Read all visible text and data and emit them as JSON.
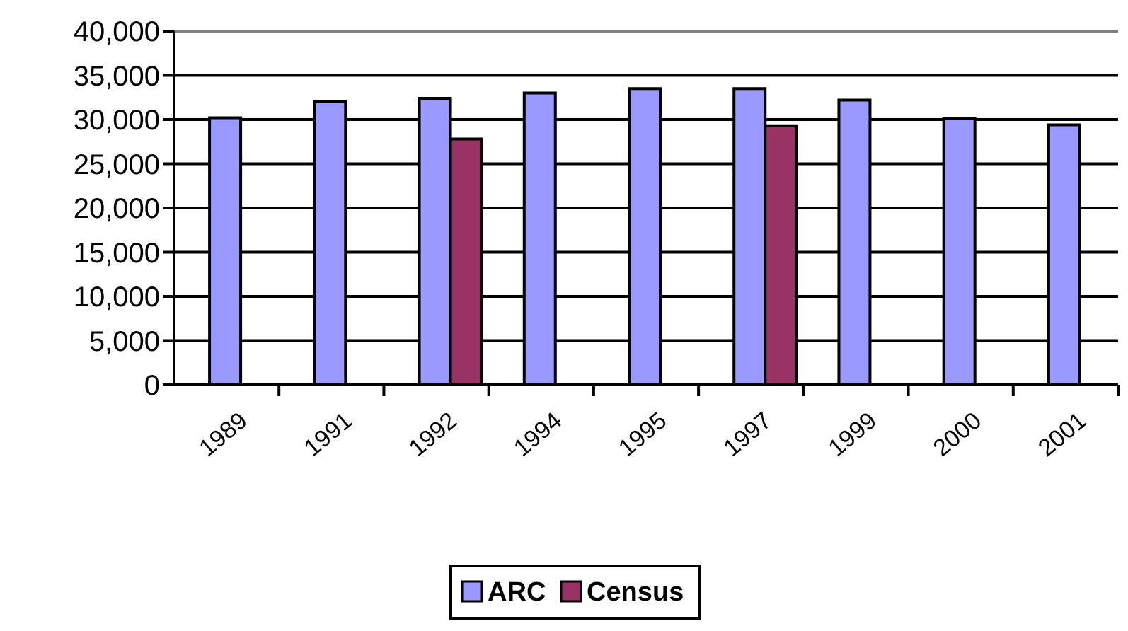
{
  "chart_data": {
    "type": "bar",
    "categories": [
      "1989",
      "1991",
      "1992",
      "1994",
      "1995",
      "1997",
      "1999",
      "2000",
      "2001"
    ],
    "series": [
      {
        "name": "ARC",
        "color": "#9999ff",
        "values": [
          30200,
          32000,
          32400,
          33000,
          33500,
          33500,
          32200,
          30100,
          29400
        ]
      },
      {
        "name": "Census",
        "color": "#993366",
        "values": [
          null,
          null,
          27800,
          null,
          null,
          29300,
          null,
          null,
          null
        ]
      }
    ],
    "ylim": [
      0,
      40000
    ],
    "yticks": [
      {
        "value": 0,
        "label": "0"
      },
      {
        "value": 5000,
        "label": "5,000"
      },
      {
        "value": 10000,
        "label": "10,000"
      },
      {
        "value": 15000,
        "label": "15,000"
      },
      {
        "value": 20000,
        "label": "20,000"
      },
      {
        "value": 25000,
        "label": "25,000"
      },
      {
        "value": 30000,
        "label": "30,000"
      },
      {
        "value": 35000,
        "label": "35,000"
      },
      {
        "value": 40000,
        "label": "40,000"
      }
    ],
    "grid": "y",
    "legend": "bottom"
  }
}
